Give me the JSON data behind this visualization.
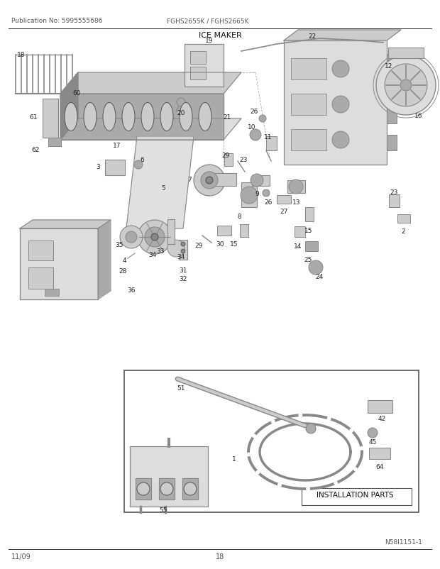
{
  "title": "ICE MAKER",
  "pub_no": "Publication No: 5995555686",
  "model": "FGHS2655K / FGHS2665K",
  "footer_left": "11/09",
  "footer_center": "18",
  "diagram_label": "N58I1151-1",
  "install_parts_label": "INSTALLATION PARTS",
  "bg_color": "#ffffff",
  "line_color": "#333333",
  "label_color": "#222222",
  "gray1": "#555555",
  "gray2": "#888888",
  "gray3": "#aaaaaa",
  "gray4": "#cccccc",
  "gray5": "#dddddd",
  "gray6": "#eeeeee"
}
